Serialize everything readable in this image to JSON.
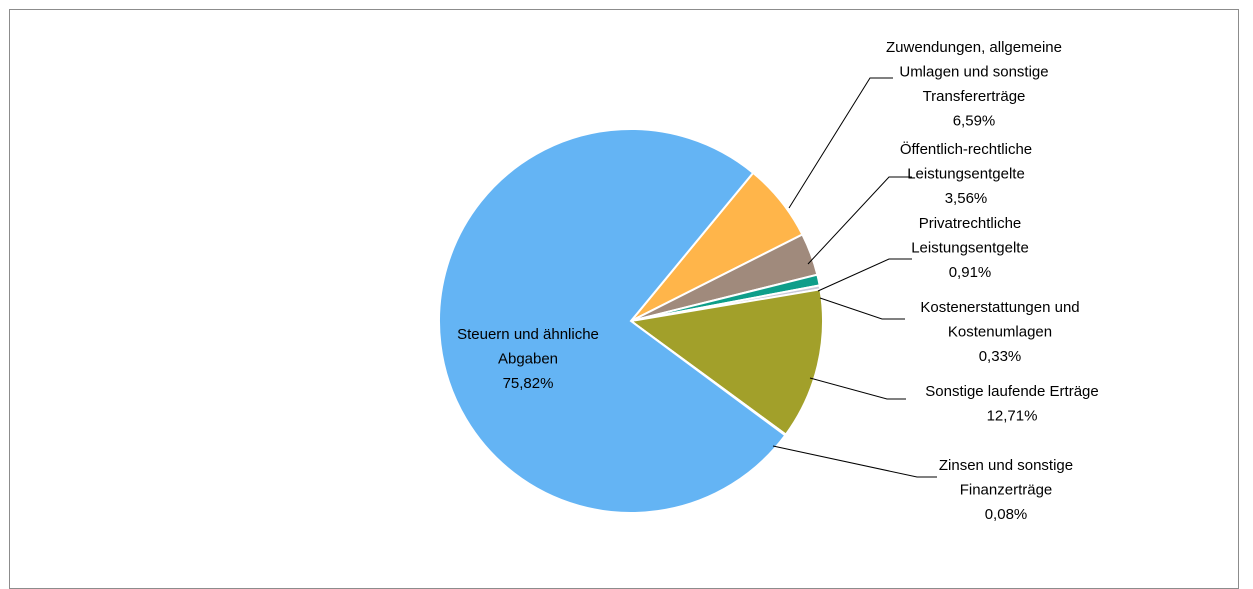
{
  "chart_data": {
    "type": "pie",
    "title": "",
    "start_angle_deg": 39.5,
    "direction": "clockwise",
    "slices": [
      {
        "label": "Zuwendungen, allgemeine Umlagen und sonstige Transfererträge",
        "label_lines": [
          "Zuwendungen, allgemeine",
          "Umlagen und sonstige",
          "Transfererträge"
        ],
        "value": 6.59,
        "value_label": "6,59%",
        "color": "#FFB54A"
      },
      {
        "label": "Öffentlich-rechtliche Leistungsentgelte",
        "label_lines": [
          "Öffentlich-rechtliche",
          "Leistungsentgelte"
        ],
        "value": 3.56,
        "value_label": "3,56%",
        "color": "#A08A7C"
      },
      {
        "label": "Privatrechtliche Leistungsentgelte",
        "label_lines": [
          "Privatrechtliche",
          "Leistungsentgelte"
        ],
        "value": 0.91,
        "value_label": "0,91%",
        "color": "#0E9E8A"
      },
      {
        "label": "Kostenerstattungen und Kostenumlagen",
        "label_lines": [
          "Kostenerstattungen und",
          "Kostenumlagen"
        ],
        "value": 0.33,
        "value_label": "0,33%",
        "color": "#C9C9D9"
      },
      {
        "label": "Sonstige laufende Erträge",
        "label_lines": [
          "Sonstige laufende Erträge"
        ],
        "value": 12.71,
        "value_label": "12,71%",
        "color": "#A2A02A"
      },
      {
        "label": "Zinsen und sonstige Finanzerträge",
        "label_lines": [
          "Zinsen und sonstige",
          "Finanzerträge"
        ],
        "value": 0.08,
        "value_label": "0,08%",
        "color": "#5A8FCF"
      },
      {
        "label": "Steuern und ähnliche Abgaben",
        "label_lines": [
          "Steuern und ähnliche",
          "Abgaben"
        ],
        "value": 75.82,
        "value_label": "75,82%",
        "color": "#64B4F4"
      }
    ],
    "legend": "none",
    "data_labels": "outside with leader lines (inside for largest slice)"
  }
}
